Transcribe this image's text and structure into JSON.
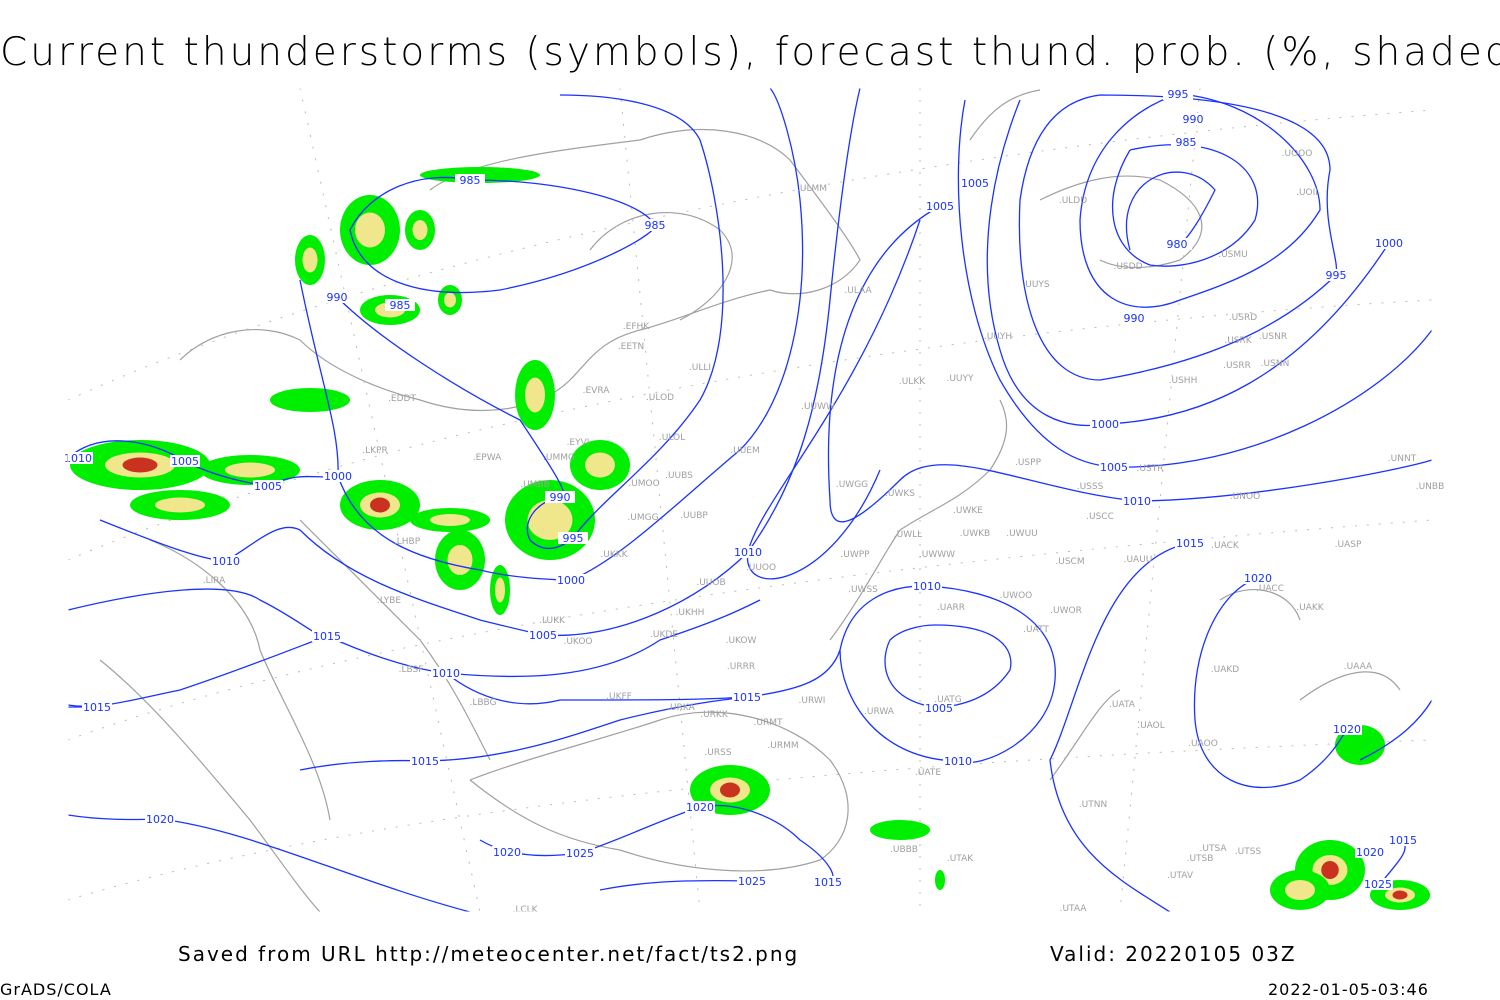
{
  "title": "Current thunderstorms (symbols), forecast thund. prob. (%, shaded)",
  "footer": {
    "source": "Saved from URL http://meteocenter.net/fact/ts2.png",
    "valid": "Valid: 20220105 03Z",
    "software": "GrADS/COLA",
    "timestamp": "2022-01-05-03:46"
  },
  "colors": {
    "isobar": "#1a33ff",
    "coastline": "#a0a0a0",
    "prob_low": "#00ee00",
    "prob_mid": "#f0e68c",
    "prob_high": "#c8321e"
  },
  "isobar_labels": [
    "985",
    "985",
    "990",
    "985",
    "1005",
    "1005",
    "995",
    "990",
    "985",
    "980",
    "995",
    "1000",
    "990",
    "1000",
    "1005",
    "1010",
    "1015",
    "1020",
    "1020",
    "1010",
    "1005",
    "1005",
    "1000",
    "990",
    "995",
    "1000",
    "1005",
    "1010",
    "1010",
    "1010",
    "1005",
    "1010",
    "1015",
    "1015",
    "1010",
    "1015",
    "1015",
    "1020",
    "1020",
    "1020",
    "1025",
    "1025",
    "1015",
    "1015",
    "1020",
    "1025"
  ],
  "stations": [
    "ULMM",
    "ULAA",
    "EFHK",
    "EETN",
    "ULLI",
    "EVRA",
    "ULOD",
    "EDDT",
    "ULKK",
    "UUYY",
    "UUWW",
    "EYVI",
    "ULOL",
    "UUEM",
    "LKPR",
    "EPWA",
    "UMMG",
    "UUBS",
    "UMOO",
    "UMBB",
    "UWGG",
    "UWKS",
    "UWKE",
    "UWKB",
    "UWUU",
    "UMGG",
    "UUBP",
    "LHBP",
    "UKKK",
    "UWLL",
    "UWWW",
    "UWPP",
    "UUOO",
    "UUOB",
    "UWSS",
    "UKHH",
    "LIRA",
    "LYBE",
    "LUKK",
    "UKOO",
    "UKDE",
    "UKOW",
    "UARR",
    "UWOO",
    "UWOR",
    "UATT",
    "URRR",
    "UKFF",
    "URKA",
    "URKK",
    "URMT",
    "UATG",
    "URWI",
    "URWA",
    "UATA",
    "UAOL",
    "UAOO",
    "URSS",
    "URMM",
    "UATE",
    "UTNN",
    "LBBG",
    "LBSF",
    "UBBB",
    "UTAK",
    "UTSA",
    "UTSS",
    "UTSB",
    "UTAV",
    "UTAA",
    "LCLK",
    "UACC",
    "UAKK",
    "UAKD",
    "UAAA",
    "USSS",
    "USTR",
    "USCC",
    "UNOO",
    "UNNT",
    "UNBB",
    "UACK",
    "UASP",
    "UAUU",
    "USCM",
    "USPP",
    "USHH",
    "USRR",
    "USNN",
    "USRK",
    "USNR",
    "USRD",
    "USMU",
    "USDD",
    "UUYS",
    "UUYH",
    "ULDD",
    "UOOO",
    "UOII"
  ]
}
